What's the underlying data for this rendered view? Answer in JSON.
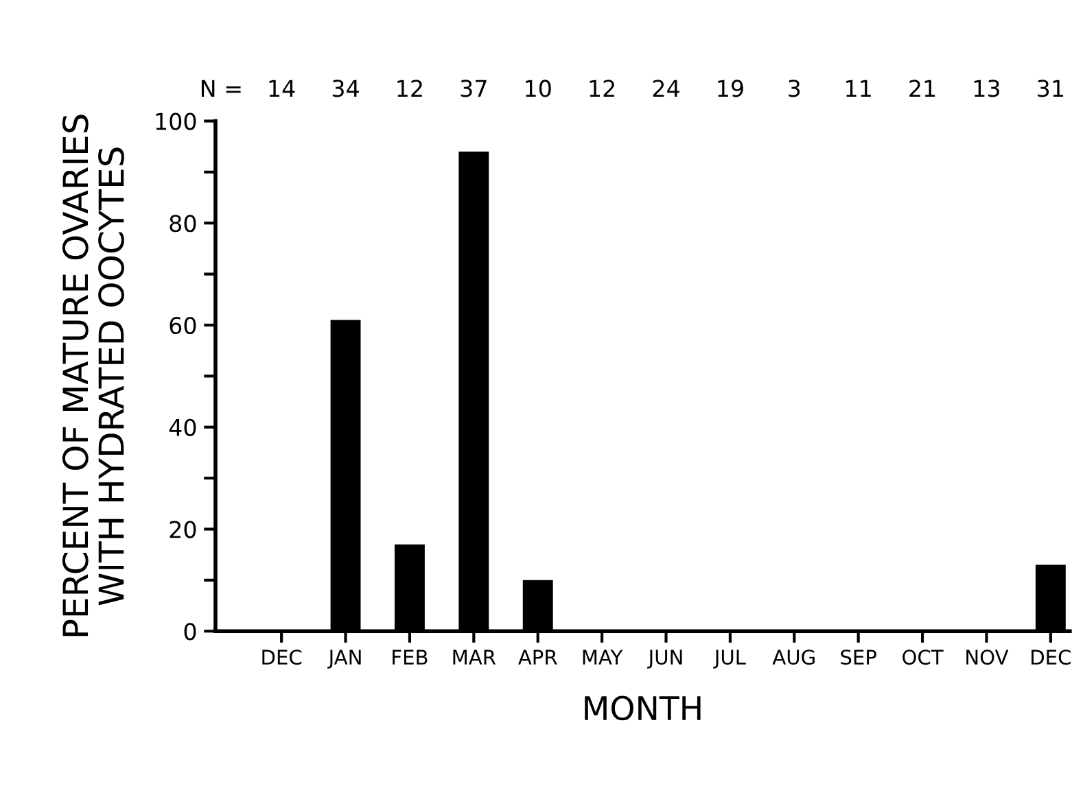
{
  "chart_data": {
    "type": "bar",
    "categories": [
      "DEC",
      "JAN",
      "FEB",
      "MAR",
      "APR",
      "MAY",
      "JUN",
      "JUL",
      "AUG",
      "SEP",
      "OCT",
      "NOV",
      "DEC"
    ],
    "values": [
      0,
      61,
      17,
      94,
      10,
      0,
      0,
      0,
      0,
      0,
      0,
      0,
      13
    ],
    "color": "#000000",
    "xlabel": "MONTH",
    "ylabel": "PERCENT OF MATURE OVARIES\nWITH HYDRATED OOCYTES",
    "annotations": [
      "N = 14 34 12 37 10 12 24 19 3 11 21 13 31"
    ],
    "ylim": [
      0,
      100
    ],
    "yticks": [
      0,
      {
        "value": 10,
        "label": null
      },
      20,
      {
        "value": 30,
        "label": null
      },
      40,
      {
        "value": 50,
        "label": null
      },
      60,
      {
        "value": 70,
        "label": null
      },
      80,
      {
        "value": 90,
        "label": null
      },
      100
    ],
    "grid": false,
    "legend": false
  }
}
